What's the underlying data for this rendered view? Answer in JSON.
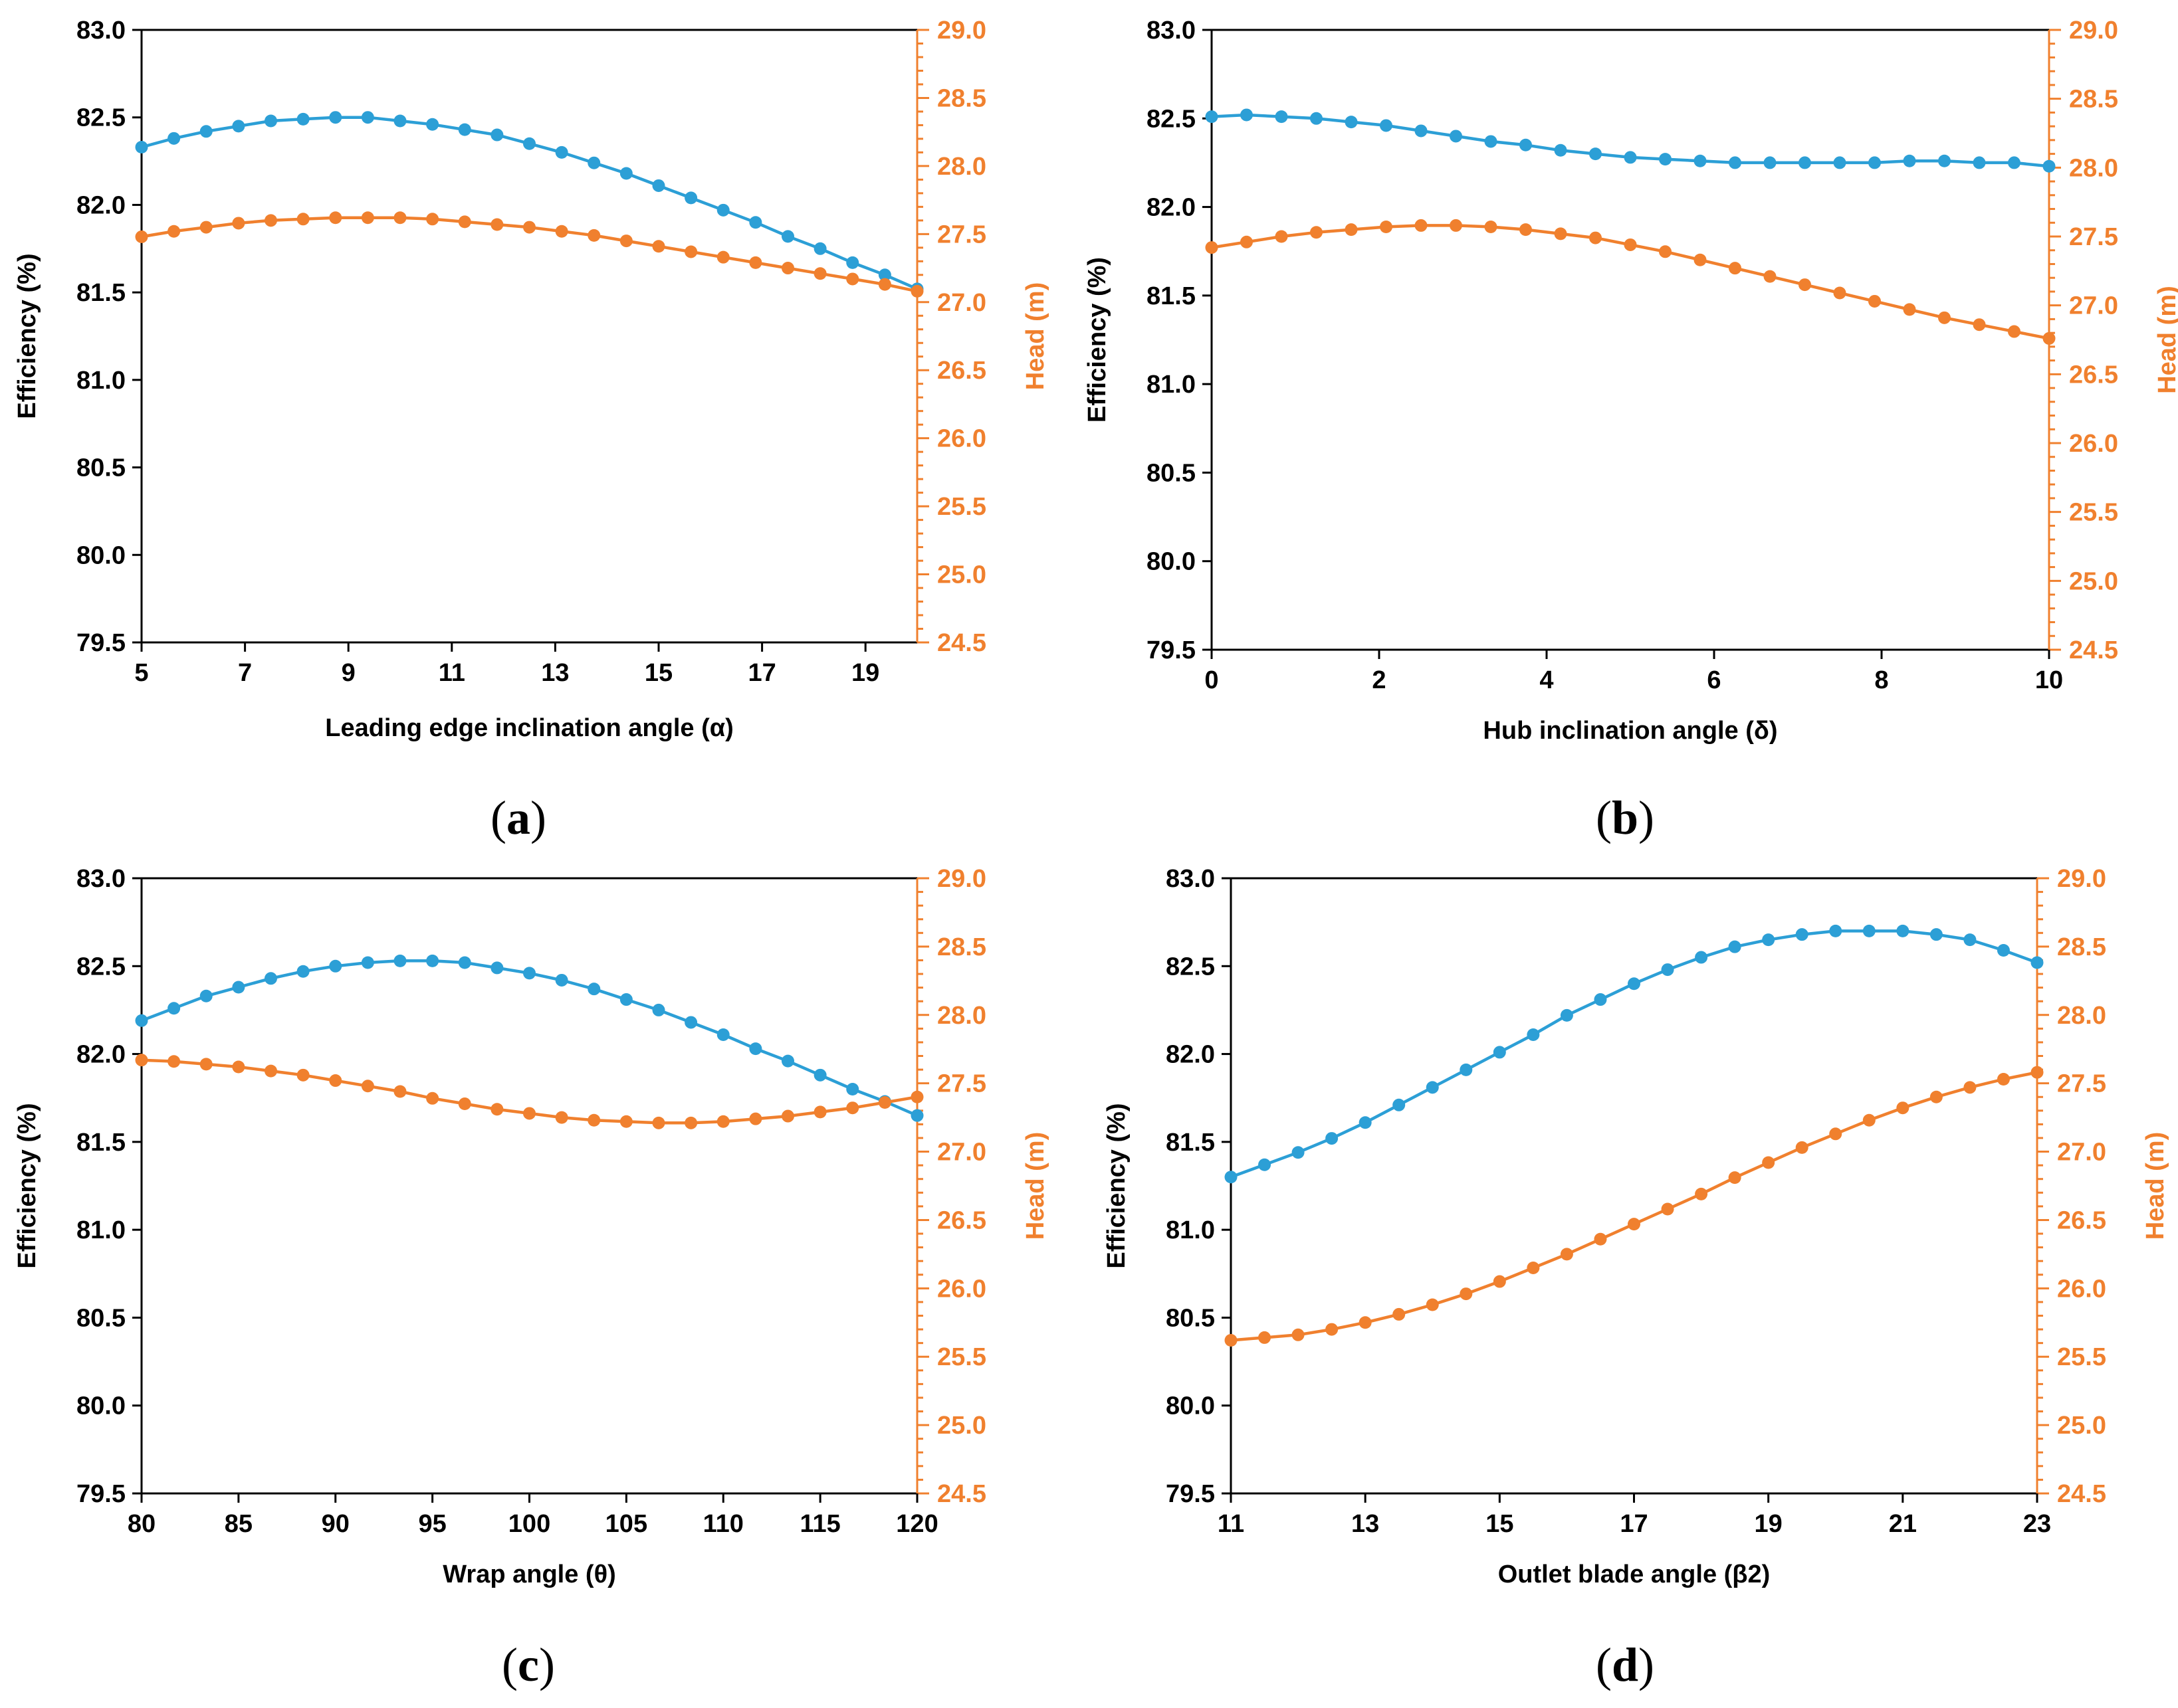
{
  "colors": {
    "efficiency": "#2c9fd6",
    "head": "#f0802e",
    "axis": "#000000"
  },
  "chart_data": [
    {
      "type": "line",
      "panel_label": "(a)",
      "label_bold": "a",
      "xlabel": "Leading edge inclination angle (α)",
      "ylabel_left": "Efficiency (%)",
      "ylabel_right": "Head (m)",
      "xlim": [
        5,
        20
      ],
      "xticks": [
        5,
        7,
        9,
        11,
        13,
        15,
        17,
        19
      ],
      "ylim_left": [
        79.5,
        83.0
      ],
      "yticks_left": [
        "79.5",
        "80.0",
        "80.5",
        "81.0",
        "81.5",
        "82.0",
        "82.5",
        "83.0"
      ],
      "ylim_right": [
        24.5,
        29.0
      ],
      "yticks_right": [
        "24.5",
        "25.0",
        "25.5",
        "26.0",
        "26.5",
        "27.0",
        "27.5",
        "28.0",
        "28.5",
        "29.0"
      ],
      "x": [
        5,
        5.625,
        6.25,
        6.875,
        7.5,
        8.125,
        8.75,
        9.375,
        10,
        10.625,
        11.25,
        11.875,
        12.5,
        13.125,
        13.75,
        14.375,
        15,
        15.625,
        16.25,
        16.875,
        17.5,
        18.125,
        18.75,
        19.375,
        20
      ],
      "series": [
        {
          "axis": "left",
          "values": [
            82.33,
            82.38,
            82.42,
            82.45,
            82.48,
            82.49,
            82.5,
            82.5,
            82.48,
            82.46,
            82.43,
            82.4,
            82.35,
            82.3,
            82.24,
            82.18,
            82.11,
            82.04,
            81.97,
            81.9,
            81.82,
            81.75,
            81.67,
            81.6,
            81.52
          ]
        },
        {
          "axis": "right",
          "values": [
            27.48,
            27.52,
            27.55,
            27.58,
            27.6,
            27.61,
            27.62,
            27.62,
            27.62,
            27.61,
            27.59,
            27.57,
            27.55,
            27.52,
            27.49,
            27.45,
            27.41,
            27.37,
            27.33,
            27.29,
            27.25,
            27.21,
            27.17,
            27.13,
            27.08
          ]
        }
      ]
    },
    {
      "type": "line",
      "panel_label": "(b)",
      "label_bold": "b",
      "xlabel": "Hub inclination angle (δ)",
      "ylabel_left": "Efficiency (%)",
      "ylabel_right": "Head (m)",
      "xlim": [
        0,
        10
      ],
      "xticks": [
        0,
        2,
        4,
        6,
        8,
        10
      ],
      "ylim_left": [
        79.5,
        83.0
      ],
      "yticks_left": [
        "79.5",
        "80.0",
        "80.5",
        "81.0",
        "81.5",
        "82.0",
        "82.5",
        "83.0"
      ],
      "ylim_right": [
        24.5,
        29.0
      ],
      "yticks_right": [
        "24.5",
        "25.0",
        "25.5",
        "26.0",
        "26.5",
        "27.0",
        "27.5",
        "28.0",
        "28.5",
        "29.0"
      ],
      "x": [
        0,
        0.4167,
        0.8333,
        1.25,
        1.6667,
        2.0833,
        2.5,
        2.9167,
        3.3333,
        3.75,
        4.1667,
        4.5833,
        5,
        5.4167,
        5.8333,
        6.25,
        6.6667,
        7.0833,
        7.5,
        7.9167,
        8.3333,
        8.75,
        9.1667,
        9.5833,
        10
      ],
      "series": [
        {
          "axis": "left",
          "values": [
            82.51,
            82.52,
            82.51,
            82.5,
            82.48,
            82.46,
            82.43,
            82.4,
            82.37,
            82.35,
            82.32,
            82.3,
            82.28,
            82.27,
            82.26,
            82.25,
            82.25,
            82.25,
            82.25,
            82.25,
            82.26,
            82.26,
            82.25,
            82.25,
            82.23
          ]
        },
        {
          "axis": "right",
          "values": [
            27.42,
            27.46,
            27.5,
            27.53,
            27.55,
            27.57,
            27.58,
            27.58,
            27.57,
            27.55,
            27.52,
            27.49,
            27.44,
            27.39,
            27.33,
            27.27,
            27.21,
            27.15,
            27.09,
            27.03,
            26.97,
            26.91,
            26.86,
            26.81,
            26.76
          ]
        }
      ]
    },
    {
      "type": "line",
      "panel_label": "(c)",
      "label_bold": "c",
      "xlabel": "Wrap angle (θ)",
      "ylabel_left": "Efficiency (%)",
      "ylabel_right": "Head (m)",
      "xlim": [
        80,
        120
      ],
      "xticks": [
        80,
        85,
        90,
        95,
        100,
        105,
        110,
        115,
        120
      ],
      "ylim_left": [
        79.5,
        83.0
      ],
      "yticks_left": [
        "79.5",
        "80.0",
        "80.5",
        "81.0",
        "81.5",
        "82.0",
        "82.5",
        "83.0"
      ],
      "ylim_right": [
        24.5,
        29.0
      ],
      "yticks_right": [
        "24.5",
        "25.0",
        "25.5",
        "26.0",
        "26.5",
        "27.0",
        "27.5",
        "28.0",
        "28.5",
        "29.0"
      ],
      "x": [
        80,
        81.667,
        83.333,
        85,
        86.667,
        88.333,
        90,
        91.667,
        93.333,
        95,
        96.667,
        98.333,
        100,
        101.667,
        103.333,
        105,
        106.667,
        108.333,
        110,
        111.667,
        113.333,
        115,
        116.667,
        118.333,
        120
      ],
      "series": [
        {
          "axis": "left",
          "values": [
            82.19,
            82.26,
            82.33,
            82.38,
            82.43,
            82.47,
            82.5,
            82.52,
            82.53,
            82.53,
            82.52,
            82.49,
            82.46,
            82.42,
            82.37,
            82.31,
            82.25,
            82.18,
            82.11,
            82.03,
            81.96,
            81.88,
            81.8,
            81.73,
            81.65
          ]
        },
        {
          "axis": "right",
          "values": [
            27.67,
            27.66,
            27.64,
            27.62,
            27.59,
            27.56,
            27.52,
            27.48,
            27.44,
            27.39,
            27.35,
            27.31,
            27.28,
            27.25,
            27.23,
            27.22,
            27.21,
            27.21,
            27.22,
            27.24,
            27.26,
            27.29,
            27.32,
            27.36,
            27.4
          ]
        }
      ]
    },
    {
      "type": "line",
      "panel_label": "(d)",
      "label_bold": "d",
      "xlabel": "Outlet blade angle (β2)",
      "ylabel_left": "Efficiency (%)",
      "ylabel_right": "Head (m)",
      "xlim": [
        11,
        23
      ],
      "xticks": [
        11,
        13,
        15,
        17,
        19,
        21,
        23
      ],
      "ylim_left": [
        79.5,
        83.0
      ],
      "yticks_left": [
        "79.5",
        "80.0",
        "80.5",
        "81.0",
        "81.5",
        "82.0",
        "82.5",
        "83.0"
      ],
      "ylim_right": [
        24.5,
        29.0
      ],
      "yticks_right": [
        "24.5",
        "25.0",
        "25.5",
        "26.0",
        "26.5",
        "27.0",
        "27.5",
        "28.0",
        "28.5",
        "29.0"
      ],
      "x": [
        11,
        11.5,
        12,
        12.5,
        13,
        13.5,
        14,
        14.5,
        15,
        15.5,
        16,
        16.5,
        17,
        17.5,
        18,
        18.5,
        19,
        19.5,
        20,
        20.5,
        21,
        21.5,
        22,
        22.5,
        23
      ],
      "series": [
        {
          "axis": "left",
          "values": [
            81.3,
            81.37,
            81.44,
            81.52,
            81.61,
            81.71,
            81.81,
            81.91,
            82.01,
            82.11,
            82.22,
            82.31,
            82.4,
            82.48,
            82.55,
            82.61,
            82.65,
            82.68,
            82.7,
            82.7,
            82.7,
            82.68,
            82.65,
            82.59,
            82.52
          ]
        },
        {
          "axis": "right",
          "values": [
            25.62,
            25.64,
            25.66,
            25.7,
            25.75,
            25.81,
            25.88,
            25.96,
            26.05,
            26.15,
            26.25,
            26.36,
            26.47,
            26.58,
            26.69,
            26.81,
            26.92,
            27.03,
            27.13,
            27.23,
            27.32,
            27.4,
            27.47,
            27.53,
            27.58
          ]
        }
      ]
    }
  ]
}
